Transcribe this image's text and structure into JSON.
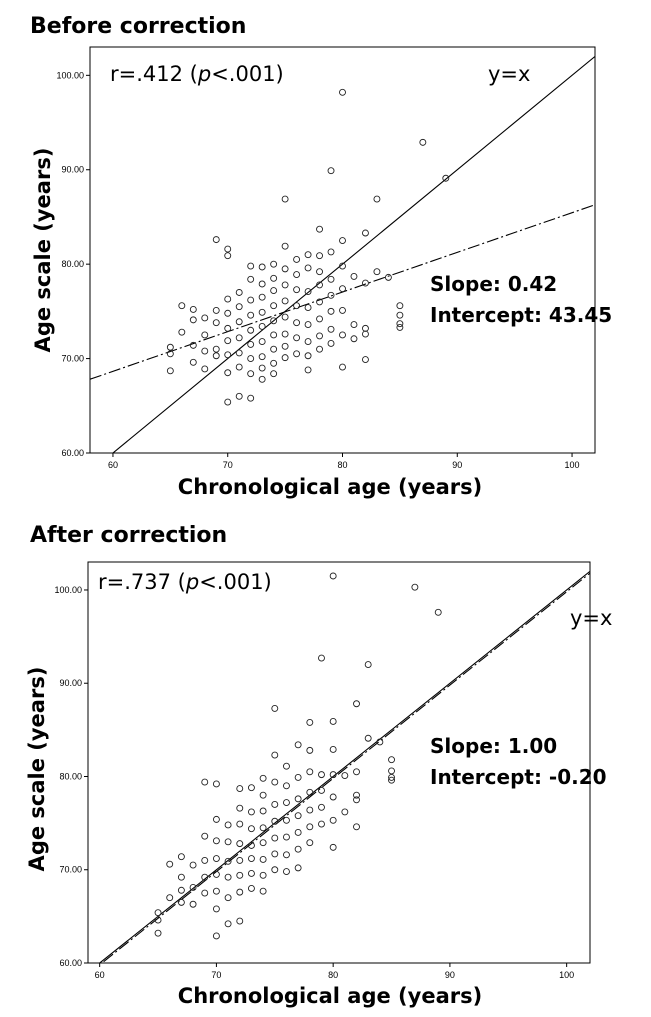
{
  "chart_data": [
    {
      "type": "scatter",
      "title": "Before correction",
      "xlabel": "Chronological age (years)",
      "ylabel": "Age scale (years)",
      "xlim": [
        58,
        102
      ],
      "ylim": [
        60,
        103
      ],
      "x_ticks": [
        "60",
        "70",
        "80",
        "90",
        "100"
      ],
      "y_ticks": [
        "60.00",
        "70.00",
        "80.00",
        "90.00",
        "100.00"
      ],
      "annotation": {
        "r_prefix": "r=.412 (",
        "p_italic": "p",
        "r_suffix": "<.001)"
      },
      "identity_label": "y=x",
      "fit_slope_label": "Slope: 0.42",
      "fit_intercept_label": "Intercept: 43.45",
      "fit": {
        "slope": 0.42,
        "intercept": 43.45
      },
      "points": [
        [
          65,
          70.5
        ],
        [
          65,
          71.2
        ],
        [
          65,
          68.7
        ],
        [
          66,
          75.6
        ],
        [
          66,
          72.8
        ],
        [
          67,
          74.1
        ],
        [
          67,
          75.2
        ],
        [
          67,
          71.4
        ],
        [
          67,
          69.6
        ],
        [
          68,
          72.5
        ],
        [
          68,
          70.8
        ],
        [
          68,
          74.3
        ],
        [
          68,
          68.9
        ],
        [
          69,
          82.6
        ],
        [
          69,
          71.0
        ],
        [
          69,
          73.8
        ],
        [
          69,
          75.1
        ],
        [
          69,
          70.3
        ],
        [
          70,
          81.6
        ],
        [
          70,
          80.9
        ],
        [
          70,
          76.3
        ],
        [
          70,
          74.8
        ],
        [
          70,
          73.2
        ],
        [
          70,
          71.9
        ],
        [
          70,
          70.4
        ],
        [
          70,
          68.5
        ],
        [
          70,
          65.4
        ],
        [
          71,
          77.0
        ],
        [
          71,
          75.5
        ],
        [
          71,
          73.9
        ],
        [
          71,
          72.2
        ],
        [
          71,
          70.6
        ],
        [
          71,
          69.1
        ],
        [
          71,
          66.0
        ],
        [
          72,
          79.8
        ],
        [
          72,
          78.4
        ],
        [
          72,
          76.2
        ],
        [
          72,
          74.6
        ],
        [
          72,
          73.0
        ],
        [
          72,
          71.5
        ],
        [
          72,
          70.0
        ],
        [
          72,
          68.4
        ],
        [
          72,
          65.8
        ],
        [
          73,
          79.7
        ],
        [
          73,
          77.9
        ],
        [
          73,
          76.5
        ],
        [
          73,
          74.9
        ],
        [
          73,
          73.4
        ],
        [
          73,
          71.8
        ],
        [
          73,
          70.2
        ],
        [
          73,
          69.0
        ],
        [
          73,
          67.8
        ],
        [
          74,
          80.0
        ],
        [
          74,
          78.5
        ],
        [
          74,
          77.2
        ],
        [
          74,
          75.6
        ],
        [
          74,
          74.0
        ],
        [
          74,
          72.5
        ],
        [
          74,
          71.0
        ],
        [
          74,
          69.5
        ],
        [
          74,
          68.4
        ],
        [
          75,
          86.9
        ],
        [
          75,
          81.9
        ],
        [
          75,
          79.5
        ],
        [
          75,
          77.8
        ],
        [
          75,
          76.1
        ],
        [
          75,
          74.4
        ],
        [
          75,
          72.6
        ],
        [
          75,
          71.3
        ],
        [
          75,
          70.1
        ],
        [
          76,
          80.5
        ],
        [
          76,
          78.9
        ],
        [
          76,
          77.3
        ],
        [
          76,
          75.6
        ],
        [
          76,
          73.8
        ],
        [
          76,
          72.2
        ],
        [
          76,
          70.5
        ],
        [
          77,
          81.0
        ],
        [
          77,
          79.6
        ],
        [
          77,
          77.1
        ],
        [
          77,
          75.4
        ],
        [
          77,
          73.6
        ],
        [
          77,
          71.8
        ],
        [
          77,
          70.3
        ],
        [
          77,
          68.8
        ],
        [
          78,
          83.7
        ],
        [
          78,
          80.9
        ],
        [
          78,
          79.2
        ],
        [
          78,
          77.8
        ],
        [
          78,
          76.0
        ],
        [
          78,
          74.2
        ],
        [
          78,
          72.4
        ],
        [
          78,
          71.0
        ],
        [
          79,
          89.9
        ],
        [
          79,
          81.3
        ],
        [
          79,
          78.4
        ],
        [
          79,
          76.7
        ],
        [
          79,
          75.0
        ],
        [
          79,
          73.1
        ],
        [
          79,
          71.6
        ],
        [
          80,
          98.2
        ],
        [
          80,
          82.5
        ],
        [
          80,
          79.8
        ],
        [
          80,
          77.4
        ],
        [
          80,
          75.1
        ],
        [
          80,
          72.5
        ],
        [
          80,
          69.1
        ],
        [
          81,
          78.7
        ],
        [
          81,
          73.6
        ],
        [
          81,
          72.1
        ],
        [
          82,
          83.3
        ],
        [
          82,
          78.0
        ],
        [
          82,
          73.2
        ],
        [
          82,
          72.6
        ],
        [
          82,
          69.9
        ],
        [
          83,
          86.9
        ],
        [
          83,
          79.2
        ],
        [
          84,
          78.6
        ],
        [
          85,
          75.6
        ],
        [
          85,
          74.6
        ],
        [
          85,
          73.7
        ],
        [
          85,
          73.3
        ],
        [
          87,
          92.9
        ],
        [
          89,
          89.1
        ]
      ]
    },
    {
      "type": "scatter",
      "title": "After correction",
      "xlabel": "Chronological age (years)",
      "ylabel": "Age scale (years)",
      "xlim": [
        59,
        102
      ],
      "ylim": [
        60,
        103
      ],
      "x_ticks": [
        "60",
        "70",
        "80",
        "90",
        "100"
      ],
      "y_ticks": [
        "60.00",
        "70.00",
        "80.00",
        "90.00",
        "100.00"
      ],
      "annotation": {
        "r_prefix": "r=.737 (",
        "p_italic": "p",
        "r_suffix": "<.001)"
      },
      "identity_label": "y=x",
      "fit_slope_label": "Slope: 1.00",
      "fit_intercept_label": "Intercept: -0.20",
      "fit": {
        "slope": 1.0,
        "intercept": -0.2
      },
      "points": [
        [
          65,
          65.4
        ],
        [
          65,
          64.6
        ],
        [
          65,
          63.2
        ],
        [
          66,
          70.6
        ],
        [
          66,
          67.0
        ],
        [
          67,
          71.4
        ],
        [
          67,
          69.2
        ],
        [
          67,
          67.8
        ],
        [
          67,
          66.5
        ],
        [
          68,
          70.5
        ],
        [
          68,
          68.1
        ],
        [
          68,
          66.3
        ],
        [
          69,
          79.4
        ],
        [
          69,
          73.6
        ],
        [
          69,
          71.0
        ],
        [
          69,
          69.2
        ],
        [
          69,
          67.5
        ],
        [
          70,
          79.2
        ],
        [
          70,
          75.4
        ],
        [
          70,
          73.1
        ],
        [
          70,
          71.2
        ],
        [
          70,
          69.5
        ],
        [
          70,
          67.7
        ],
        [
          70,
          65.8
        ],
        [
          70,
          62.9
        ],
        [
          71,
          74.8
        ],
        [
          71,
          73.0
        ],
        [
          71,
          70.9
        ],
        [
          71,
          69.2
        ],
        [
          71,
          67.0
        ],
        [
          71,
          64.2
        ],
        [
          72,
          78.7
        ],
        [
          72,
          76.6
        ],
        [
          72,
          74.9
        ],
        [
          72,
          72.8
        ],
        [
          72,
          71.0
        ],
        [
          72,
          69.4
        ],
        [
          72,
          67.6
        ],
        [
          72,
          64.5
        ],
        [
          73,
          78.8
        ],
        [
          73,
          76.2
        ],
        [
          73,
          74.4
        ],
        [
          73,
          72.6
        ],
        [
          73,
          71.2
        ],
        [
          73,
          69.6
        ],
        [
          73,
          68.0
        ],
        [
          74,
          79.8
        ],
        [
          74,
          78.0
        ],
        [
          74,
          76.3
        ],
        [
          74,
          74.5
        ],
        [
          74,
          72.9
        ],
        [
          74,
          71.1
        ],
        [
          74,
          69.4
        ],
        [
          74,
          67.7
        ],
        [
          75,
          87.3
        ],
        [
          75,
          82.3
        ],
        [
          75,
          79.4
        ],
        [
          75,
          77.0
        ],
        [
          75,
          75.2
        ],
        [
          75,
          73.4
        ],
        [
          75,
          71.7
        ],
        [
          75,
          70.0
        ],
        [
          76,
          81.1
        ],
        [
          76,
          79.0
        ],
        [
          76,
          77.2
        ],
        [
          76,
          75.3
        ],
        [
          76,
          73.5
        ],
        [
          76,
          71.6
        ],
        [
          76,
          69.8
        ],
        [
          77,
          83.4
        ],
        [
          77,
          79.9
        ],
        [
          77,
          77.6
        ],
        [
          77,
          75.8
        ],
        [
          77,
          74.0
        ],
        [
          77,
          72.2
        ],
        [
          77,
          70.2
        ],
        [
          78,
          85.8
        ],
        [
          78,
          82.8
        ],
        [
          78,
          80.5
        ],
        [
          78,
          78.3
        ],
        [
          78,
          76.4
        ],
        [
          78,
          74.6
        ],
        [
          78,
          72.9
        ],
        [
          79,
          92.7
        ],
        [
          79,
          80.2
        ],
        [
          79,
          78.5
        ],
        [
          79,
          76.7
        ],
        [
          79,
          74.9
        ],
        [
          80,
          101.5
        ],
        [
          80,
          85.9
        ],
        [
          80,
          82.9
        ],
        [
          80,
          80.2
        ],
        [
          80,
          77.8
        ],
        [
          80,
          75.3
        ],
        [
          80,
          72.4
        ],
        [
          81,
          80.1
        ],
        [
          81,
          76.2
        ],
        [
          82,
          87.8
        ],
        [
          82,
          80.5
        ],
        [
          82,
          78.0
        ],
        [
          82,
          77.5
        ],
        [
          82,
          74.6
        ],
        [
          83,
          92.0
        ],
        [
          83,
          84.1
        ],
        [
          84,
          83.7
        ],
        [
          85,
          81.8
        ],
        [
          85,
          80.6
        ],
        [
          85,
          79.9
        ],
        [
          85,
          79.6
        ],
        [
          87,
          100.3
        ],
        [
          89,
          97.6
        ]
      ]
    }
  ]
}
